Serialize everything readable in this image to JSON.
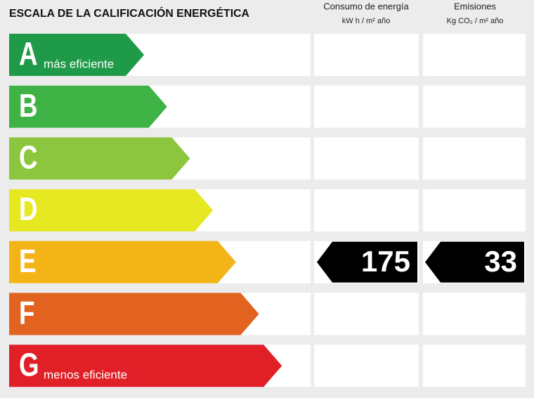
{
  "header": {
    "title": "ESCALA DE LA CALIFICACIÓN ENERGÉTICA",
    "columns": [
      {
        "title": "Consumo de energía",
        "unit": "kW h / m² año"
      },
      {
        "title": "Emisiones",
        "unit": "Kg CO₂ / m² año"
      }
    ]
  },
  "rows": [
    {
      "letter": "A",
      "label": "más eficiente",
      "color": "#1e9a48"
    },
    {
      "letter": "B",
      "color": "#3fb245"
    },
    {
      "letter": "C",
      "color": "#8cc63f"
    },
    {
      "letter": "D",
      "color": "#e6e821"
    },
    {
      "letter": "E",
      "color": "#f2b417",
      "consumo": 175,
      "emisiones": 33
    },
    {
      "letter": "F",
      "color": "#e2621f"
    },
    {
      "letter": "G",
      "label": "menos eficiente",
      "color": "#e11f26"
    }
  ]
}
